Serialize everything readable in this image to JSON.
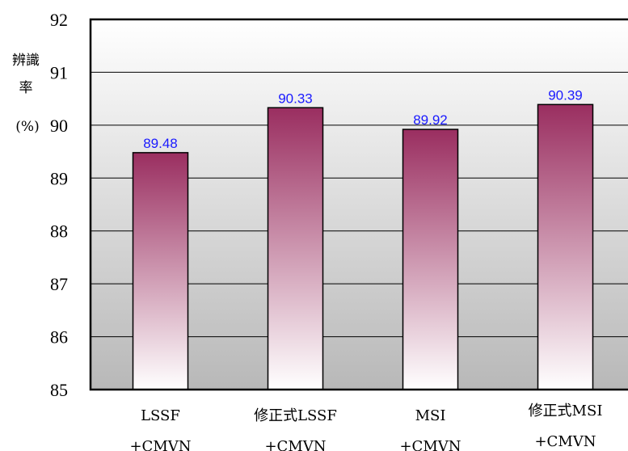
{
  "chart_data": {
    "type": "bar",
    "categories": [
      [
        "LSSF",
        "+CMVN"
      ],
      [
        "修正式LSSF",
        "+CMVN"
      ],
      [
        "MSI",
        "+CMVN"
      ],
      [
        "修正式MSI",
        "+CMVN"
      ]
    ],
    "values": [
      89.48,
      90.33,
      89.92,
      90.39
    ],
    "data_labels": [
      "89.48",
      "90.33",
      "89.92",
      "90.39"
    ],
    "ylabel_lines": [
      "辨識",
      "率",
      "(%)"
    ],
    "ylim": [
      85,
      92
    ],
    "yticks": [
      "85",
      "86",
      "87",
      "88",
      "89",
      "90",
      "91",
      "92"
    ],
    "grid": true,
    "bar_gradient": [
      "#9a2e60",
      "#ffffff"
    ],
    "background_gradient": [
      "#ffffff",
      "#b8b8b8"
    ],
    "label_color": "#1a1aff"
  }
}
